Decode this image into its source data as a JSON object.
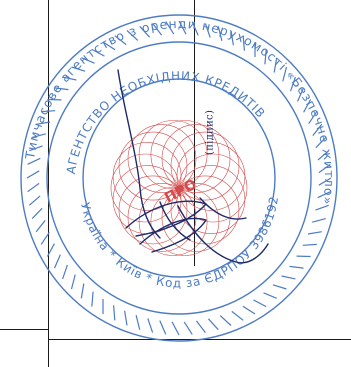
{
  "stamp": {
    "outer_text": "Тимчасове агентство з оренди нерухомості «Безпечне житло»",
    "inner_top_text": "АГЕНТСТВО НЕОБХІДНИХ КРЕДИТІВ",
    "inner_bottom_text": "Україна * Київ * Код за ЄДРПОУ 39861921",
    "center_text": "ПРО",
    "ink_color": "#4d7cc4",
    "center_pattern_color": "#d24a4a"
  },
  "signature": {
    "caption": "(підпис)",
    "ink_color": "#1d2b6b"
  }
}
